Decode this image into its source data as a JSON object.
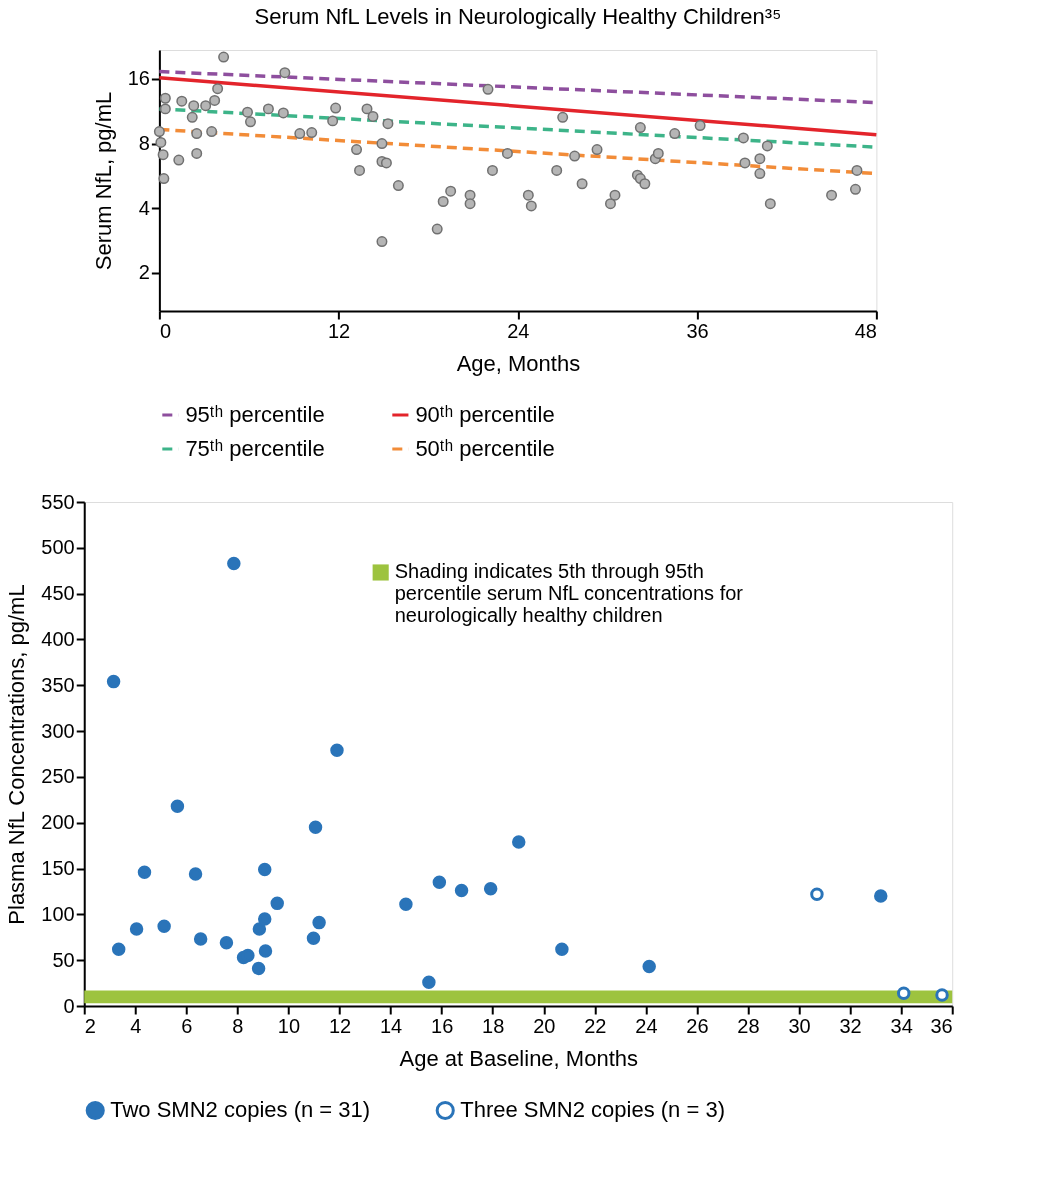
{
  "chart_data": [
    {
      "type": "scatter",
      "title": "Serum NfL Levels in Neurologically Healthy Children³⁵",
      "xlabel": "Age, Months",
      "ylabel": "Serum NfL, pg/mL",
      "xlim": [
        0,
        48
      ],
      "xticks": [
        0,
        12,
        24,
        36,
        48
      ],
      "ylim": [
        1.33,
        21.8
      ],
      "yticks": [
        2,
        4,
        8,
        16
      ],
      "log": "y",
      "grid": false,
      "legend": "bottom",
      "series": [
        {
          "name": "95ᵗʰ percentile",
          "type": "line",
          "line_style": "dashed",
          "color": "#8e4f9e",
          "x": [
            0,
            48
          ],
          "values": [
            17.3,
            12.4
          ]
        },
        {
          "name": "90ᵗʰ percentile",
          "type": "line",
          "line_style": "solid",
          "color": "#e3242b",
          "x": [
            0,
            48
          ],
          "values": [
            16.2,
            8.8
          ]
        },
        {
          "name": "75ᵗʰ percentile",
          "type": "line",
          "line_style": "dashed",
          "color": "#3db489",
          "x": [
            0,
            48
          ],
          "values": [
            11.6,
            7.7
          ]
        },
        {
          "name": "50ᵗʰ percentile",
          "type": "line",
          "line_style": "dashed",
          "color": "#f28c38",
          "x": [
            0,
            48
          ],
          "values": [
            9.3,
            5.8
          ]
        },
        {
          "type": "scatter",
          "marker": "circle",
          "color": "#b5b5b5",
          "x": [
            0,
            0.1,
            0.25,
            0.3,
            0.4,
            0.4,
            1.3,
            1.5,
            2.2,
            2.3,
            2.5,
            2.5,
            3.1,
            3.7,
            3.5,
            3.9,
            4.3,
            5.9,
            6.1,
            7.3,
            8.3,
            8.4,
            9.4,
            10.2,
            11.6,
            11.8,
            13.2,
            13.4,
            13.9,
            14.3,
            14.9,
            14.9,
            15.2,
            15.3,
            14.9,
            16.0,
            18.6,
            19.0,
            19.5,
            20.8,
            20.8,
            22.0,
            22.3,
            23.3,
            24.7,
            24.9,
            26.6,
            27.0,
            27.8,
            28.3,
            29.3,
            30.2,
            30.5,
            32.0,
            32.2,
            32.5,
            32.2,
            33.2,
            33.4,
            34.5,
            36.2,
            39.1,
            39.2,
            40.2,
            40.2,
            40.7,
            40.9,
            45.0,
            46.6,
            46.7
          ],
          "values": [
            9.1,
            8.1,
            7.1,
            5.5,
            13.0,
            11.6,
            6.7,
            12.6,
            10.6,
            12.0,
            8.9,
            7.2,
            12.0,
            12.7,
            9.1,
            14.4,
            20.2,
            11.2,
            10.1,
            11.6,
            11.1,
            17.1,
            8.9,
            9.0,
            10.2,
            11.7,
            7.5,
            6.0,
            11.6,
            10.7,
            8.0,
            6.6,
            6.5,
            9.9,
            2.8,
            5.1,
            3.2,
            4.3,
            4.8,
            4.6,
            4.2,
            14.3,
            6.0,
            7.2,
            4.6,
            4.1,
            6.0,
            10.6,
            7.0,
            5.2,
            7.5,
            4.2,
            4.6,
            5.7,
            5.5,
            5.2,
            9.5,
            6.8,
            7.2,
            8.9,
            9.7,
            8.5,
            6.5,
            6.8,
            5.8,
            7.8,
            4.2,
            4.6,
            4.9,
            6.0
          ]
        }
      ]
    },
    {
      "type": "scatter",
      "xlabel": "Age at Baseline, Months",
      "ylabel": "Plasma NfL Concentrations, pg/mL",
      "xlim": [
        2,
        36
      ],
      "xticks": [
        2,
        4,
        6,
        8,
        10,
        12,
        14,
        16,
        18,
        20,
        22,
        24,
        26,
        28,
        30,
        32,
        34,
        36
      ],
      "ylim": [
        0,
        550
      ],
      "yticks": [
        0,
        50,
        100,
        150,
        200,
        250,
        300,
        350,
        400,
        450,
        500,
        550
      ],
      "grid": false,
      "legend": "bottom",
      "bands": [
        {
          "axis": "y",
          "from": 3,
          "to": 17,
          "color": "#9dc33f",
          "label": "Shading indicates 5th through 95th\npercentile serum NfL concentrations for\nneurologically healthy children"
        }
      ],
      "series": [
        {
          "name": "Two SMN2 copies (n = 31)",
          "color": "#2a74b9",
          "marker": "circle",
          "x": [
            3.15,
            3.35,
            4.05,
            4.36,
            5.13,
            5.65,
            6.36,
            6.56,
            7.57,
            7.86,
            8.24,
            8.41,
            8.83,
            8.86,
            9.07,
            9.07,
            9.1,
            9.56,
            10.98,
            11.06,
            11.2,
            11.9,
            14.6,
            15.5,
            15.91,
            16.78,
            17.92,
            19.02,
            20.71,
            24.13,
            33.2
          ],
          "values": [
            354,
            62,
            84,
            146,
            87,
            218,
            144,
            73,
            69,
            483,
            53,
            55,
            41,
            84,
            149,
            95,
            60,
            112,
            74,
            195,
            91,
            279,
            111,
            26,
            135,
            126,
            128,
            179,
            62,
            43,
            120
          ]
        },
        {
          "name": "Three SMN2 copies (n = 3)",
          "color": "#2a74b9",
          "marker": "open circle",
          "x": [
            30.7,
            34.1,
            35.6
          ],
          "values": [
            122,
            14,
            12
          ]
        }
      ]
    }
  ]
}
